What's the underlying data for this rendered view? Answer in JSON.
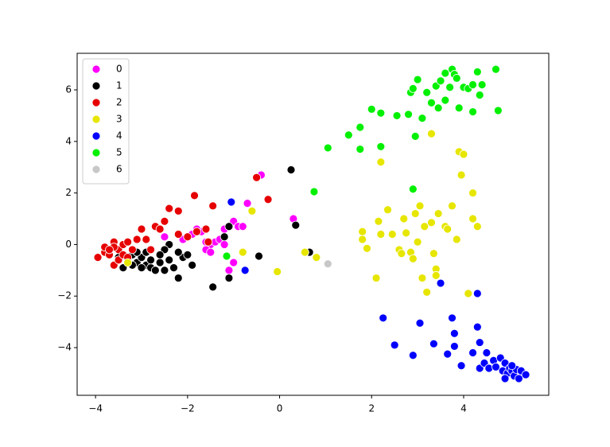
{
  "chart_data": {
    "type": "scatter",
    "legend": "upper left",
    "grid": false,
    "xlim": [
      -4.4,
      5.85
    ],
    "ylim": [
      -5.85,
      7.42
    ],
    "xticks": [
      {
        "value": -4,
        "label": "−4"
      },
      {
        "value": -2,
        "label": "−2"
      },
      0,
      2,
      4
    ],
    "yticks": [
      {
        "value": -4,
        "label": "−4"
      },
      {
        "value": -2,
        "label": "−2"
      },
      0,
      2,
      4,
      6
    ],
    "series": [
      {
        "name": "0",
        "color": "#ff00ff",
        "x": [
          -2,
          -1.5,
          -1.2,
          -1,
          -0.9,
          -0.8,
          -1.7,
          -1.4,
          -1.6,
          -2.5,
          -1.1,
          -1,
          -0.7,
          -0.4,
          0.3,
          -1.3,
          -1.8,
          -2.1,
          -1.9,
          -1.5,
          -1.2,
          -3.3,
          -1.6
        ],
        "y": [
          0.3,
          0,
          0.6,
          0.9,
          0.7,
          0.7,
          0.5,
          0.1,
          -0.2,
          0.3,
          -1.0,
          -0.7,
          1.6,
          2.7,
          1.0,
          0.2,
          0.6,
          0.2,
          0.4,
          -0.3,
          0.0,
          -0.7,
          0.1
        ]
      },
      {
        "name": "1",
        "color": "#000000",
        "x": [
          -3.4,
          -3.3,
          -3.2,
          -3.1,
          -3.0,
          -2.9,
          -2.8,
          -2.7,
          -2.6,
          -2.5,
          -2.4,
          -2.3,
          -2.2,
          -2.1,
          -2.0,
          -1.9,
          -2.4,
          -2.5,
          -3.5,
          -3.0,
          -2.9,
          -3.1,
          -2.2,
          -1.45,
          -1.1,
          -1.1,
          -1.2,
          -0.45,
          0.25,
          0.35,
          0.65,
          -2.6,
          -3.2,
          -2.8
        ],
        "y": [
          -0.9,
          -0.6,
          -0.4,
          -0.7,
          -0.5,
          -0.8,
          -0.9,
          -1.0,
          -0.7,
          -1.0,
          -0.6,
          -0.9,
          -1.3,
          -0.5,
          -0.4,
          -0.8,
          0.0,
          -0.2,
          -0.5,
          -0.9,
          -0.3,
          -0.3,
          -0.3,
          -1.65,
          -1.3,
          0.7,
          0.3,
          -0.45,
          2.9,
          0.75,
          -0.3,
          -0.4,
          -0.8,
          -0.6
        ]
      },
      {
        "name": "2",
        "color": "#e60000",
        "x": [
          -3.95,
          -3.8,
          -3.8,
          -3.7,
          -3.6,
          -3.6,
          -3.5,
          -3.5,
          -3.4,
          -3.4,
          -3.3,
          -3.3,
          -3.2,
          -3.1,
          -3.0,
          -2.9,
          -2.8,
          -2.7,
          -2.6,
          -2.5,
          -2.4,
          -2.2,
          -2.2,
          -2.0,
          -1.85,
          -1.8,
          -1.6,
          -1.45,
          -1.55,
          -0.5,
          -0.25,
          -3.6,
          -3.7
        ],
        "y": [
          -0.5,
          -0.3,
          -0.1,
          -0.4,
          0.1,
          -0.8,
          -0.2,
          -0.6,
          0.0,
          -0.4,
          0.1,
          -0.5,
          -0.2,
          0.2,
          0.6,
          0.2,
          -0.2,
          0.7,
          0.6,
          0.9,
          1.4,
          1.3,
          0.4,
          0.3,
          1.9,
          0.5,
          0.6,
          1.5,
          0.1,
          2.6,
          1.75,
          -0.1,
          -0.2
        ]
      },
      {
        "name": "3",
        "color": "#e6e600",
        "x": [
          -3.3,
          -0.8,
          -0.6,
          -0.05,
          0.55,
          0.8,
          1.8,
          1.8,
          1.9,
          2.1,
          2.15,
          2.2,
          2.2,
          2.35,
          2.45,
          2.6,
          2.65,
          2.7,
          2.75,
          2.85,
          2.9,
          2.95,
          3.0,
          3.05,
          3.1,
          3.15,
          3.2,
          3.3,
          3.35,
          3.4,
          3.4,
          3.45,
          3.6,
          3.65,
          3.75,
          3.85,
          3.9,
          3.95,
          4.0,
          4.1,
          4.2,
          4.2,
          4.3,
          3.3
        ],
        "y": [
          -0.7,
          -0.3,
          1.3,
          -1.05,
          -0.3,
          -0.5,
          0.5,
          0.2,
          -0.15,
          -1.3,
          0.9,
          3.2,
          0.4,
          1.35,
          0.4,
          -0.2,
          -0.35,
          1.0,
          0.45,
          -0.3,
          -0.55,
          1.2,
          0.1,
          1.5,
          -1.3,
          0.7,
          -1.85,
          4.3,
          -0.35,
          -0.95,
          -1.2,
          1.2,
          0.7,
          0.6,
          1.5,
          0.2,
          3.6,
          2.7,
          3.5,
          -1.9,
          2.0,
          1.0,
          0.7,
          0.85
        ]
      },
      {
        "name": "4",
        "color": "#0000ff",
        "x": [
          -1.05,
          -0.75,
          2.25,
          2.5,
          2.9,
          3.05,
          3.35,
          3.5,
          3.65,
          3.75,
          3.8,
          3.8,
          3.95,
          4.2,
          4.3,
          4.3,
          4.35,
          4.35,
          4.45,
          4.5,
          4.55,
          4.65,
          4.7,
          4.8,
          4.85,
          4.9,
          4.95,
          5.0,
          5.05,
          5.1,
          5.15,
          5.2,
          5.25,
          5.35,
          4.9,
          5.05
        ],
        "y": [
          1.65,
          -1.0,
          -2.85,
          -3.9,
          -4.3,
          -3.05,
          -3.85,
          -1.5,
          -4.25,
          -2.85,
          -3.45,
          -3.95,
          -4.7,
          -4.2,
          -1.9,
          -3.2,
          -3.8,
          -4.8,
          -4.6,
          -4.2,
          -4.8,
          -4.5,
          -4.75,
          -4.4,
          -4.9,
          -4.6,
          -5.0,
          -4.8,
          -4.9,
          -5.1,
          -4.85,
          -5.2,
          -4.9,
          -5.05,
          -5.2,
          -4.7
        ]
      },
      {
        "name": "5",
        "color": "#00f000",
        "x": [
          -1.15,
          0.75,
          1.05,
          1.5,
          1.75,
          1.75,
          2.0,
          2.2,
          2.2,
          2.55,
          2.8,
          2.85,
          2.9,
          2.9,
          2.95,
          3.0,
          3.1,
          3.2,
          3.3,
          3.4,
          3.45,
          3.5,
          3.6,
          3.7,
          3.75,
          3.8,
          3.85,
          3.9,
          4.0,
          4.1,
          4.2,
          4.2,
          4.3,
          4.35,
          4.4,
          4.7,
          4.75,
          3.6
        ],
        "y": [
          -0.45,
          2.05,
          3.75,
          4.25,
          4.55,
          3.7,
          5.25,
          5.1,
          3.8,
          5.0,
          5.05,
          5.9,
          6.05,
          2.15,
          4.2,
          6.4,
          4.9,
          5.9,
          5.5,
          6.15,
          5.3,
          6.35,
          6.65,
          6.1,
          6.8,
          6.6,
          6.45,
          5.3,
          6.1,
          6.05,
          6.2,
          5.15,
          6.7,
          5.8,
          6.2,
          6.8,
          5.2,
          5.6
        ]
      },
      {
        "name": "6",
        "color": "#c8c8c8",
        "x": [
          1.05
        ],
        "y": [
          -0.75
        ]
      }
    ]
  }
}
